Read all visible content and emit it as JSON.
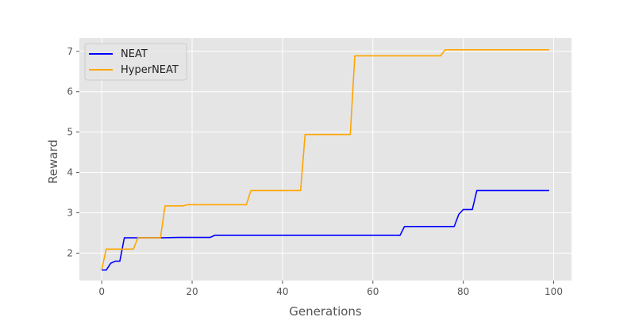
{
  "chart_data": {
    "type": "line",
    "title": "",
    "xlabel": "Generations",
    "ylabel": "Reward",
    "xlim": [
      -4.95,
      103.95
    ],
    "ylim": [
      1.32,
      7.33
    ],
    "xticks": [
      0,
      20,
      40,
      60,
      80,
      100
    ],
    "xtick_labels": [
      "0",
      "20",
      "40",
      "60",
      "80",
      "100"
    ],
    "yticks": [
      2,
      3,
      4,
      5,
      6,
      7
    ],
    "ytick_labels": [
      "2",
      "3",
      "4",
      "5",
      "6",
      "7"
    ],
    "grid": true,
    "legend_position": "top-left",
    "series": [
      {
        "name": "NEAT",
        "color": "#0000ff",
        "points": [
          [
            0,
            1.58
          ],
          [
            1,
            1.58
          ],
          [
            2,
            1.75
          ],
          [
            3,
            1.8
          ],
          [
            4,
            1.8
          ],
          [
            5,
            2.38
          ],
          [
            13,
            2.38
          ],
          [
            17,
            2.39
          ],
          [
            24,
            2.39
          ],
          [
            25,
            2.44
          ],
          [
            66,
            2.44
          ],
          [
            67,
            2.66
          ],
          [
            78,
            2.66
          ],
          [
            79,
            2.96
          ],
          [
            80,
            3.08
          ],
          [
            82,
            3.08
          ],
          [
            83,
            3.55
          ],
          [
            99,
            3.55
          ]
        ]
      },
      {
        "name": "HyperNEAT",
        "color": "#ffa500",
        "points": [
          [
            0,
            1.6
          ],
          [
            1,
            2.1
          ],
          [
            7,
            2.1
          ],
          [
            8,
            2.38
          ],
          [
            13,
            2.38
          ],
          [
            14,
            3.17
          ],
          [
            18,
            3.17
          ],
          [
            19,
            3.2
          ],
          [
            32,
            3.2
          ],
          [
            33,
            3.55
          ],
          [
            44,
            3.55
          ],
          [
            45,
            4.94
          ],
          [
            55,
            4.94
          ],
          [
            56,
            6.89
          ],
          [
            75,
            6.89
          ],
          [
            76,
            7.04
          ],
          [
            99,
            7.04
          ]
        ]
      }
    ]
  }
}
